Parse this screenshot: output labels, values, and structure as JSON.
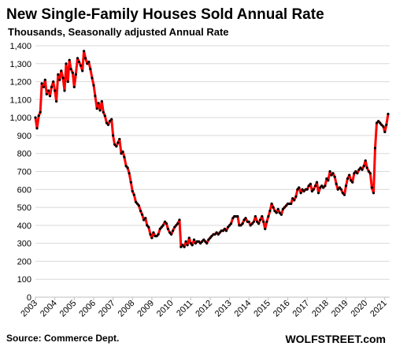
{
  "chart_data": {
    "type": "line",
    "title": "New Single-Family Houses Sold Annual Rate",
    "subtitle": "Thousands, Seasonally adjusted Annual Rate",
    "xlabel": "",
    "ylabel": "",
    "source": "Source: Commerce Dept.",
    "brand": "WOLFSTREET.com",
    "ylim": [
      0,
      1400
    ],
    "yticks": [
      "0",
      "100",
      "200",
      "300",
      "400",
      "500",
      "600",
      "700",
      "800",
      "900",
      "1,000",
      "1,100",
      "1,200",
      "1,300",
      "1,400"
    ],
    "xlim": [
      2003,
      2021.25
    ],
    "xticks": [
      "2003",
      "2004",
      "2005",
      "2006",
      "2007",
      "2008",
      "2009",
      "2010",
      "2011",
      "2012",
      "2013",
      "2014",
      "2015",
      "2016",
      "2017",
      "2018",
      "2019",
      "2020",
      "2021"
    ],
    "grid": true,
    "line_color": "#ff0000",
    "marker_color": "#000000",
    "series": [
      {
        "x": [
          2003.0,
          2003.08,
          2003.17,
          2003.25,
          2003.33,
          2003.42,
          2003.5,
          2003.58,
          2003.67,
          2003.75,
          2003.83,
          2003.92,
          2004.0,
          2004.08,
          2004.17,
          2004.25,
          2004.33,
          2004.42,
          2004.5,
          2004.58,
          2004.67,
          2004.75,
          2004.83,
          2004.92,
          2005.0,
          2005.08,
          2005.17,
          2005.25,
          2005.33,
          2005.42,
          2005.5,
          2005.58,
          2005.67,
          2005.75,
          2005.83,
          2005.92,
          2006.0,
          2006.08,
          2006.17,
          2006.25,
          2006.33,
          2006.42,
          2006.5,
          2006.58,
          2006.67,
          2006.75,
          2006.83,
          2006.92,
          2007.0,
          2007.08,
          2007.17,
          2007.25,
          2007.33,
          2007.42,
          2007.5,
          2007.58,
          2007.67,
          2007.75,
          2007.83,
          2007.92,
          2008.0,
          2008.08,
          2008.17,
          2008.25,
          2008.33,
          2008.42,
          2008.5,
          2008.58,
          2008.67,
          2008.75,
          2008.83,
          2008.92,
          2009.0,
          2009.08,
          2009.17,
          2009.25,
          2009.33,
          2009.42,
          2009.5,
          2009.58,
          2009.67,
          2009.75,
          2009.83,
          2009.92,
          2010.0,
          2010.08,
          2010.17,
          2010.25,
          2010.33,
          2010.42,
          2010.5,
          2010.58,
          2010.67,
          2010.75,
          2010.83,
          2010.92,
          2011.0,
          2011.08,
          2011.17,
          2011.25,
          2011.33,
          2011.42,
          2011.5,
          2011.58,
          2011.67,
          2011.75,
          2011.83,
          2011.92,
          2012.0,
          2012.08,
          2012.17,
          2012.25,
          2012.33,
          2012.42,
          2012.5,
          2012.58,
          2012.67,
          2012.75,
          2012.83,
          2012.92,
          2013.0,
          2013.08,
          2013.17,
          2013.25,
          2013.33,
          2013.42,
          2013.5,
          2013.58,
          2013.67,
          2013.75,
          2013.83,
          2013.92,
          2014.0,
          2014.08,
          2014.17,
          2014.25,
          2014.33,
          2014.42,
          2014.5,
          2014.58,
          2014.67,
          2014.75,
          2014.83,
          2014.92,
          2015.0,
          2015.08,
          2015.17,
          2015.25,
          2015.33,
          2015.42,
          2015.5,
          2015.58,
          2015.67,
          2015.75,
          2015.83,
          2015.92,
          2016.0,
          2016.08,
          2016.17,
          2016.25,
          2016.33,
          2016.42,
          2016.5,
          2016.58,
          2016.67,
          2016.75,
          2016.83,
          2016.92,
          2017.0,
          2017.08,
          2017.17,
          2017.25,
          2017.33,
          2017.42,
          2017.5,
          2017.58,
          2017.67,
          2017.75,
          2017.83,
          2017.92,
          2018.0,
          2018.08,
          2018.17,
          2018.25,
          2018.33,
          2018.42,
          2018.5,
          2018.58,
          2018.67,
          2018.75,
          2018.83,
          2018.92,
          2019.0,
          2019.08,
          2019.17,
          2019.25,
          2019.33,
          2019.42,
          2019.5,
          2019.58,
          2019.67,
          2019.75,
          2019.83,
          2019.92,
          2020.0,
          2020.08,
          2020.17,
          2020.25,
          2020.33,
          2020.42,
          2020.5,
          2020.58,
          2020.67,
          2020.75,
          2020.83,
          2020.92,
          2021.0,
          2021.08,
          2021.17
        ],
        "values": [
          1000,
          940,
          1010,
          1030,
          1190,
          1170,
          1210,
          1130,
          1150,
          1120,
          1170,
          1200,
          1150,
          1090,
          1240,
          1210,
          1260,
          1220,
          1150,
          1300,
          1200,
          1320,
          1270,
          1250,
          1170,
          1240,
          1330,
          1310,
          1290,
          1260,
          1370,
          1330,
          1300,
          1310,
          1270,
          1220,
          1180,
          1120,
          1050,
          1080,
          1040,
          1090,
          1030,
          1010,
          970,
          960,
          980,
          990,
          900,
          850,
          840,
          860,
          880,
          800,
          810,
          780,
          730,
          720,
          690,
          640,
          590,
          570,
          530,
          520,
          510,
          480,
          460,
          430,
          440,
          400,
          390,
          350,
          330,
          360,
          340,
          340,
          350,
          380,
          390,
          400,
          420,
          410,
          380,
          360,
          350,
          370,
          390,
          400,
          410,
          430,
          280,
          290,
          280,
          310,
          290,
          330,
          300,
          290,
          320,
          300,
          310,
          310,
          300,
          310,
          320,
          310,
          300,
          320,
          330,
          340,
          350,
          350,
          360,
          350,
          360,
          370,
          370,
          380,
          370,
          390,
          400,
          410,
          440,
          450,
          450,
          450,
          400,
          400,
          410,
          430,
          440,
          420,
          420,
          400,
          410,
          420,
          450,
          420,
          410,
          430,
          450,
          420,
          380,
          420,
          450,
          480,
          520,
          500,
          480,
          470,
          490,
          470,
          460,
          490,
          500,
          510,
          520,
          520,
          520,
          550,
          540,
          560,
          600,
          610,
          580,
          600,
          590,
          600,
          600,
          620,
          630,
          590,
          600,
          620,
          640,
          580,
          610,
          620,
          610,
          620,
          660,
          650,
          700,
          680,
          690,
          670,
          630,
          600,
          610,
          600,
          580,
          570,
          620,
          660,
          680,
          650,
          640,
          690,
          700,
          690,
          710,
          720,
          710,
          730,
          760,
          720,
          700,
          690,
          610,
          580,
          830,
          970,
          980,
          970,
          960,
          950,
          920,
          960,
          1020
        ]
      }
    ]
  }
}
